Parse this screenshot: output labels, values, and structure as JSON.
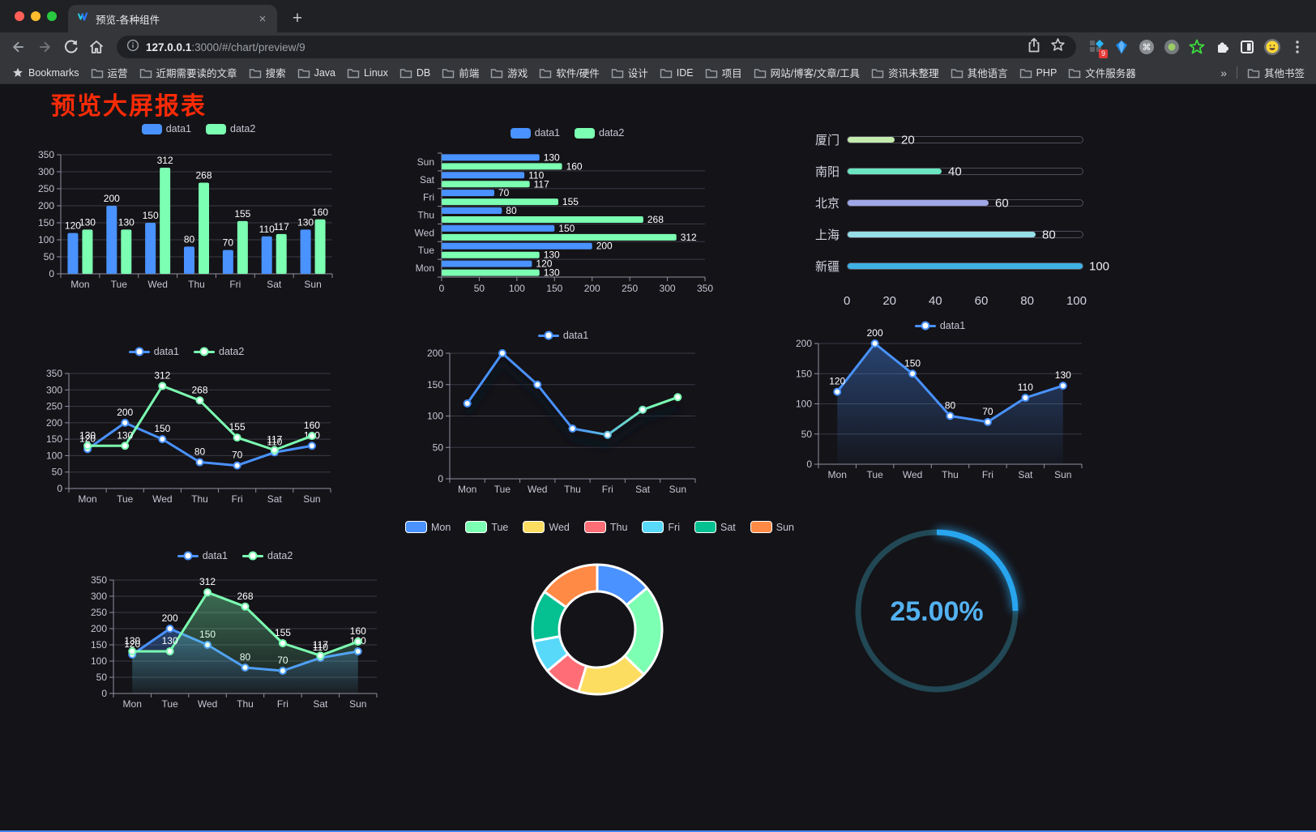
{
  "browser": {
    "traffic_lights": [
      "#ff5f57",
      "#febc2e",
      "#28c840"
    ],
    "tab": {
      "title": "预览-各种组件",
      "close": "×"
    },
    "new_tab_button": "+",
    "url": {
      "host": "127.0.0.1",
      "rest": ":3000/#/chart/preview/9"
    },
    "extension_badge": "9",
    "bookmarks_bar": {
      "bookmarks_label": "Bookmarks",
      "folders": [
        "运营",
        "近期需要读的文章",
        "搜索",
        "Java",
        "Linux",
        "DB",
        "前端",
        "游戏",
        "软件/硬件",
        "设计",
        "IDE",
        "项目",
        "网站/博客/文章/工具",
        "资讯未整理",
        "其他语言",
        "PHP",
        "文件服务器"
      ],
      "overflow": "»",
      "other_bookmarks": "其他书签"
    }
  },
  "page": {
    "title": "预览大屏报表",
    "title_color": "#fb2b07",
    "background": "#141318",
    "bottom_bar_color": "#4285f4"
  },
  "chart_data": [
    {
      "type": "bar",
      "categories": [
        "Mon",
        "Tue",
        "Wed",
        "Thu",
        "Fri",
        "Sat",
        "Sun"
      ],
      "series": [
        {
          "name": "data1",
          "color": "#4992ff",
          "values": [
            120,
            200,
            150,
            80,
            70,
            110,
            130
          ]
        },
        {
          "name": "data2",
          "color": "#7cffb2",
          "values": [
            130,
            130,
            312,
            268,
            155,
            117,
            160
          ]
        }
      ],
      "ylim": [
        0,
        350
      ],
      "yticks": [
        0,
        50,
        100,
        150,
        200,
        250,
        300,
        350
      ],
      "legend_position": "top",
      "grid": true,
      "value_labels": true
    },
    {
      "type": "bar",
      "orientation": "horizontal",
      "categories": [
        "Mon",
        "Tue",
        "Wed",
        "Thu",
        "Fri",
        "Sat",
        "Sun"
      ],
      "display_order_top_to_bottom": [
        "Sun",
        "Sat",
        "Fri",
        "Thu",
        "Wed",
        "Tue",
        "Mon"
      ],
      "series": [
        {
          "name": "data1",
          "color": "#4992ff",
          "values": [
            120,
            200,
            150,
            80,
            70,
            110,
            130
          ]
        },
        {
          "name": "data2",
          "color": "#7cffb2",
          "values": [
            130,
            130,
            312,
            268,
            155,
            117,
            160
          ]
        }
      ],
      "xlim": [
        0,
        350
      ],
      "xticks": [
        0,
        50,
        100,
        150,
        200,
        250,
        300,
        350
      ],
      "legend_position": "top",
      "value_labels": true
    },
    {
      "type": "progress-bars",
      "items": [
        {
          "label": "厦门",
          "value": 20,
          "color": "#c4ebad"
        },
        {
          "label": "南阳",
          "value": 40,
          "color": "#6be6c1"
        },
        {
          "label": "北京",
          "value": 60,
          "color": "#a0a7e6"
        },
        {
          "label": "上海",
          "value": 80,
          "color": "#96dee8"
        },
        {
          "label": "新疆",
          "value": 100,
          "color": "#3fb1e3"
        }
      ],
      "xlim": [
        0,
        100
      ],
      "xticks": [
        0,
        20,
        40,
        60,
        80,
        100
      ]
    },
    {
      "type": "line",
      "categories": [
        "Mon",
        "Tue",
        "Wed",
        "Thu",
        "Fri",
        "Sat",
        "Sun"
      ],
      "series": [
        {
          "name": "data1",
          "color": "#4992ff",
          "values": [
            120,
            200,
            150,
            80,
            70,
            110,
            130
          ],
          "labels": true
        },
        {
          "name": "data2",
          "color": "#7cffb2",
          "values": [
            130,
            130,
            312,
            268,
            155,
            117,
            160
          ],
          "labels": true
        }
      ],
      "ylim": [
        0,
        350
      ],
      "yticks": [
        0,
        50,
        100,
        150,
        200,
        250,
        300,
        350
      ],
      "legend_position": "top"
    },
    {
      "type": "line",
      "categories": [
        "Mon",
        "Tue",
        "Wed",
        "Thu",
        "Fri",
        "Sat",
        "Sun"
      ],
      "series": [
        {
          "name": "data1",
          "color": "#4992ff",
          "gradient": [
            "#4992ff",
            "#7cffb2"
          ],
          "values": [
            120,
            200,
            150,
            80,
            70,
            110,
            130
          ],
          "labels": false
        }
      ],
      "ylim": [
        0,
        200
      ],
      "yticks": [
        0,
        50,
        100,
        150,
        200
      ],
      "shadow": true,
      "legend_position": "top"
    },
    {
      "type": "line",
      "categories": [
        "Mon",
        "Tue",
        "Wed",
        "Thu",
        "Fri",
        "Sat",
        "Sun"
      ],
      "series": [
        {
          "name": "data1",
          "color": "#4992ff",
          "values": [
            120,
            200,
            150,
            80,
            70,
            110,
            130
          ],
          "labels": true,
          "area": true
        }
      ],
      "ylim": [
        0,
        200
      ],
      "yticks": [
        0,
        50,
        100,
        150,
        200
      ],
      "legend_position": "top"
    },
    {
      "type": "line",
      "categories": [
        "Mon",
        "Tue",
        "Wed",
        "Thu",
        "Fri",
        "Sat",
        "Sun"
      ],
      "series": [
        {
          "name": "data1",
          "color": "#4992ff",
          "values": [
            120,
            200,
            150,
            80,
            70,
            110,
            130
          ],
          "labels": true,
          "area": true
        },
        {
          "name": "data2",
          "color": "#7cffb2",
          "values": [
            130,
            130,
            312,
            268,
            155,
            117,
            160
          ],
          "labels": true,
          "area": true
        }
      ],
      "ylim": [
        0,
        350
      ],
      "yticks": [
        0,
        50,
        100,
        150,
        200,
        250,
        300,
        350
      ],
      "legend_position": "top"
    },
    {
      "type": "pie",
      "subtype": "donut",
      "categories": [
        "Mon",
        "Tue",
        "Wed",
        "Thu",
        "Fri",
        "Sat",
        "Sun"
      ],
      "values": [
        120,
        200,
        150,
        80,
        70,
        110,
        130
      ],
      "colors": [
        "#4992ff",
        "#7cffb2",
        "#fddd60",
        "#ff6e76",
        "#58d9f9",
        "#05c091",
        "#ff8a45"
      ],
      "border_color": "#ffffff",
      "legend_position": "top"
    },
    {
      "type": "gauge",
      "value": 25,
      "label": "25.00%",
      "color": "#28a5ee",
      "track_color": "#214854",
      "text_color": "#53b1f0"
    }
  ]
}
